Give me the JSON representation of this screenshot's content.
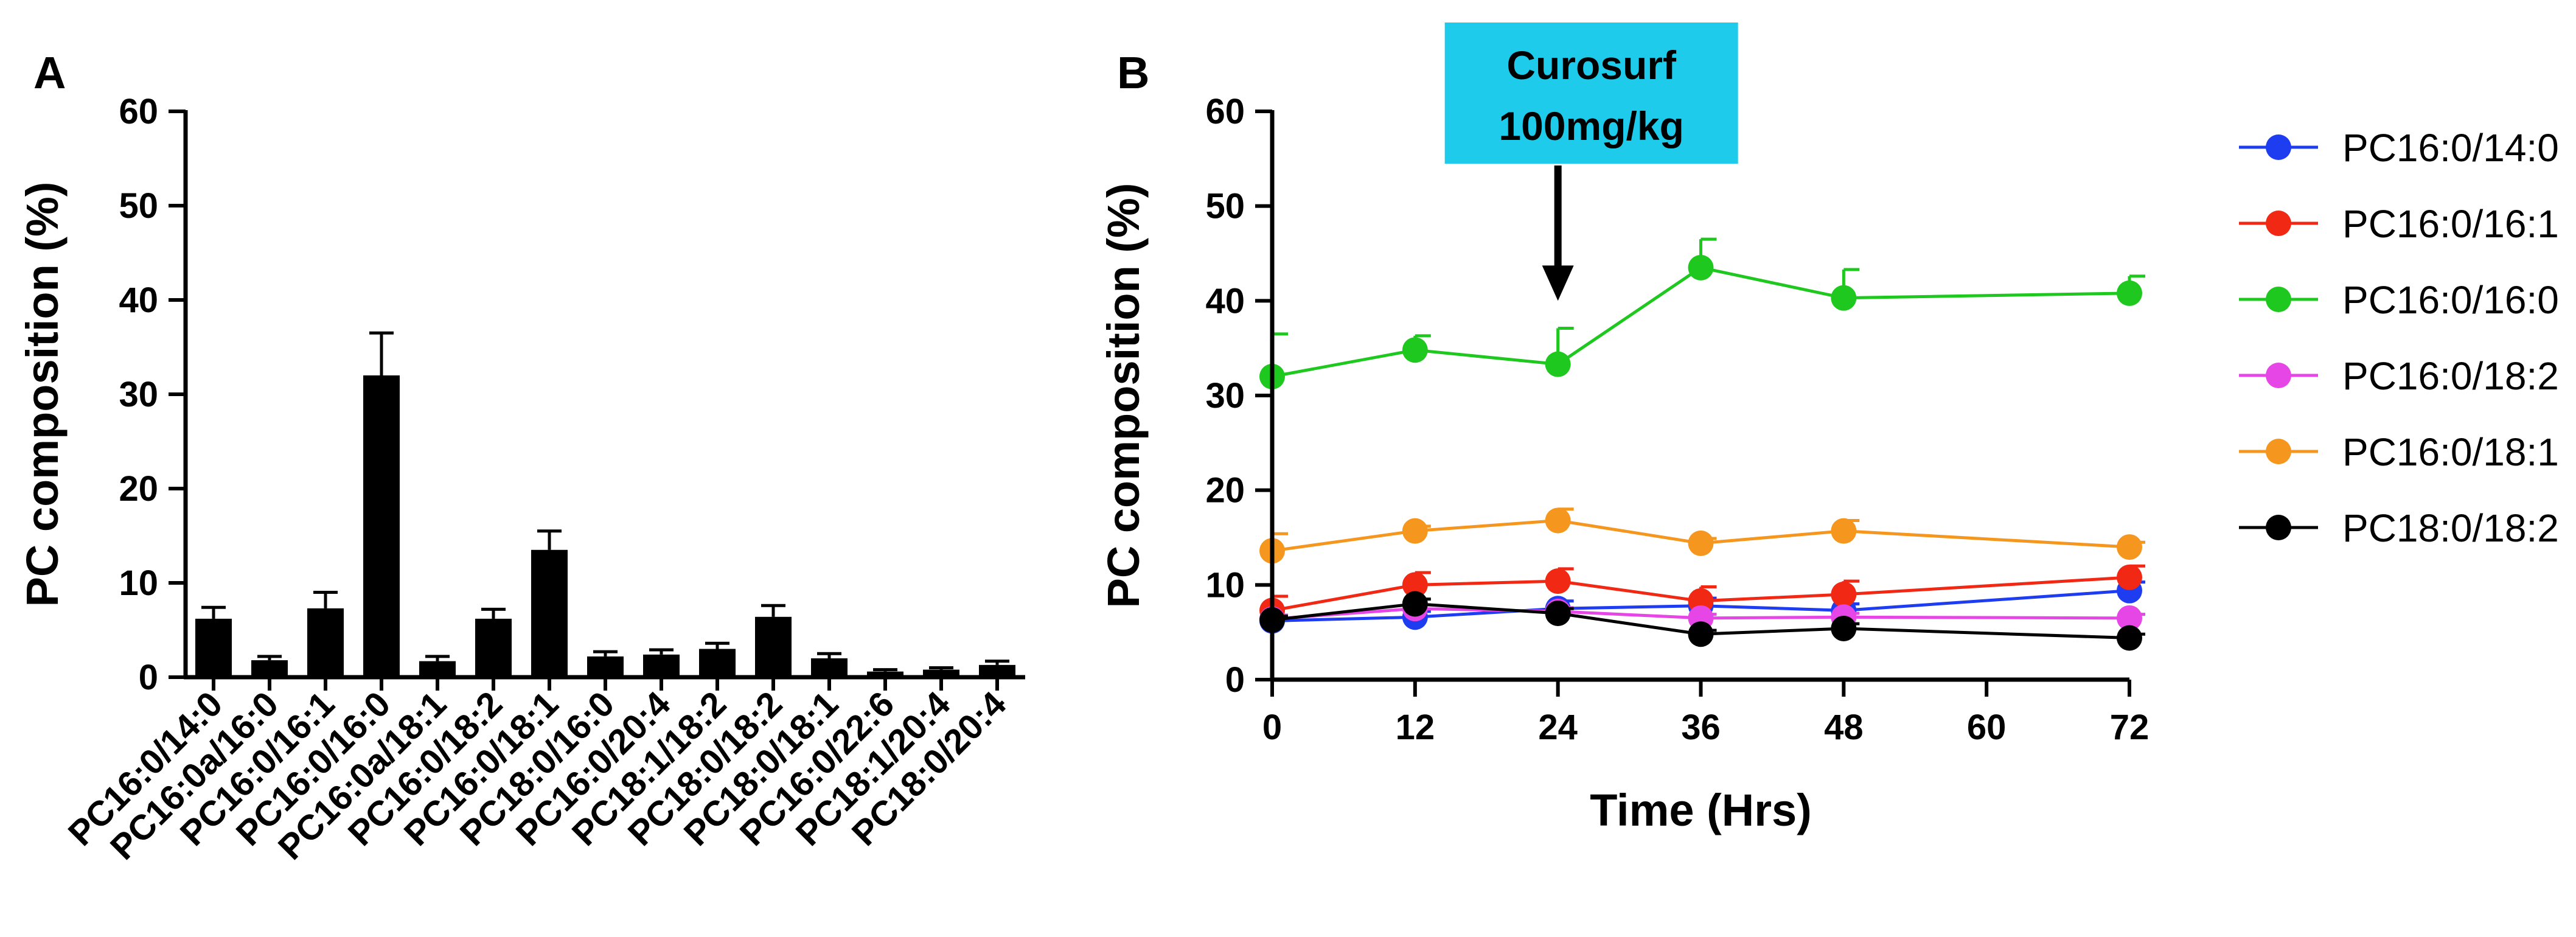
{
  "panel_labels": {
    "a": "A",
    "b": "B"
  },
  "chart_data": [
    {
      "type": "bar",
      "title": "",
      "xlabel": "",
      "ylabel": "PC composition (%)",
      "ylim": [
        0,
        60
      ],
      "yticks": [
        "0",
        "10",
        "20",
        "30",
        "40",
        "50",
        "60"
      ],
      "categories": [
        "PC16:0/14:0",
        "PC16:0a/16:0",
        "PC16:0/16:1",
        "PC16:0/16:0",
        "PC16:0a/18:1",
        "PC16:0/18:2",
        "PC16:0/18:1",
        "PC18:0/16:0",
        "PC16:0/20:4",
        "PC18:1/18:2",
        "PC18:0/18:2",
        "PC18:0/18:1",
        "PC16:0/22:6",
        "PC18:1/20:4",
        "PC18:0/20:4"
      ],
      "values": [
        6.2,
        1.8,
        7.3,
        32.0,
        1.7,
        6.2,
        13.5,
        2.2,
        2.4,
        3.0,
        6.4,
        2.0,
        0.6,
        0.8,
        1.3
      ],
      "errors": [
        1.2,
        0.4,
        1.7,
        4.5,
        0.5,
        1.0,
        2.0,
        0.5,
        0.5,
        0.6,
        1.2,
        0.5,
        0.2,
        0.2,
        0.4
      ],
      "bar_color": "#000000"
    },
    {
      "type": "line",
      "title": "",
      "xlabel": "Time (Hrs)",
      "ylabel": "PC composition (%)",
      "xlim": [
        0,
        72
      ],
      "ylim": [
        0,
        60
      ],
      "xticks": [
        "0",
        "12",
        "24",
        "36",
        "48",
        "60",
        "72"
      ],
      "yticks": [
        "0",
        "10",
        "20",
        "30",
        "40",
        "50",
        "60"
      ],
      "x": [
        0,
        12,
        24,
        36,
        48,
        72
      ],
      "series": [
        {
          "name": "PC16:0/14:0",
          "color": "#1e3cf0",
          "values": [
            6.2,
            6.6,
            7.5,
            7.8,
            7.3,
            9.4
          ],
          "errors": [
            0.6,
            0.6,
            0.8,
            0.8,
            0.7,
            0.9
          ]
        },
        {
          "name": "PC16:0/16:1",
          "color": "#f02814",
          "values": [
            7.3,
            10.0,
            10.4,
            8.3,
            9.0,
            10.8
          ],
          "errors": [
            1.5,
            1.3,
            1.3,
            1.5,
            1.4,
            1.2
          ]
        },
        {
          "name": "PC16:0/16:0",
          "color": "#1ec81e",
          "values": [
            32.0,
            34.8,
            33.3,
            43.5,
            40.3,
            40.8
          ],
          "errors": [
            4.5,
            1.5,
            3.8,
            3.0,
            3.0,
            1.8
          ]
        },
        {
          "name": "PC16:0/18:2",
          "color": "#e646e6",
          "values": [
            6.4,
            7.5,
            7.2,
            6.5,
            6.6,
            6.5
          ],
          "errors": [
            0.4,
            0.4,
            0.4,
            0.4,
            0.4,
            0.4
          ]
        },
        {
          "name": "PC16:0/18:1",
          "color": "#f5961e",
          "values": [
            13.6,
            15.7,
            16.8,
            14.4,
            15.7,
            14.0
          ],
          "errors": [
            1.8,
            0.5,
            1.2,
            0.5,
            1.1,
            0.5
          ]
        },
        {
          "name": "PC18:0/18:2",
          "color": "#000000",
          "values": [
            6.3,
            8.0,
            7.0,
            4.8,
            5.4,
            4.4
          ],
          "errors": [
            0.4,
            0.5,
            0.5,
            0.4,
            0.5,
            0.4
          ]
        }
      ],
      "annotation": {
        "line1": "Curosurf",
        "line2": "100mg/kg",
        "box_color": "#1ecbeb",
        "arrow_x_value": 24,
        "arrow_head_y_value": 40
      }
    }
  ]
}
